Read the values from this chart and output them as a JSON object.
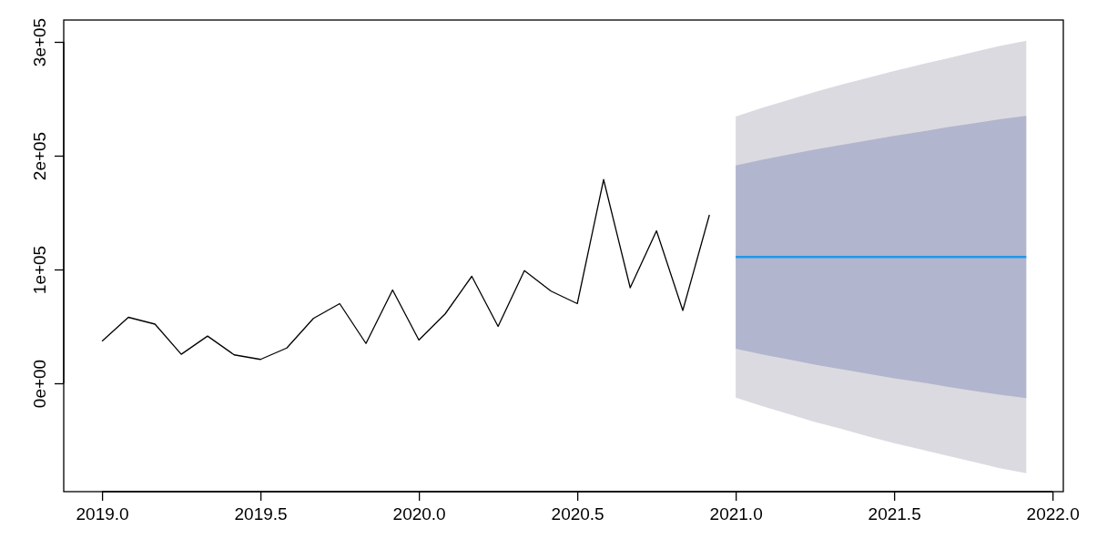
{
  "chart_data": {
    "type": "line",
    "xlim": [
      2018.879,
      2022.034
    ],
    "ylim": [
      -95200,
      319200
    ],
    "xticks": [
      {
        "value": 2019,
        "label": "2019.0"
      },
      {
        "value": 2019.5,
        "label": "2019.5"
      },
      {
        "value": 2020,
        "label": "2020.0"
      },
      {
        "value": 2020.5,
        "label": "2020.5"
      },
      {
        "value": 2021,
        "label": "2021.0"
      },
      {
        "value": 2021.5,
        "label": "2021.5"
      },
      {
        "value": 2022,
        "label": "2022.0"
      }
    ],
    "yticks": [
      {
        "value": 0,
        "label": "0e+00"
      },
      {
        "value": 100000,
        "label": "1e+05"
      },
      {
        "value": 200000,
        "label": "2e+05"
      },
      {
        "value": 300000,
        "label": "3e+05"
      }
    ],
    "series": [
      {
        "type": "area",
        "color": "#dbdae0",
        "x": [
          2021,
          2021.083,
          2021.167,
          2021.25,
          2021.333,
          2021.417,
          2021.5,
          2021.583,
          2021.667,
          2021.75,
          2021.833,
          2021.917
        ],
        "values": [
          null,
          null,
          null,
          null,
          null,
          null,
          null,
          null,
          null,
          null,
          null,
          null
        ],
        "lower": [
          -12500,
          -20000,
          -27000,
          -34000,
          -40000,
          -46500,
          -52500,
          -58000,
          -63500,
          -69000,
          -74500,
          -79000
        ],
        "upper": [
          234500,
          242000,
          249000,
          256000,
          262500,
          268500,
          274500,
          280000,
          285500,
          291000,
          296500,
          301000
        ]
      },
      {
        "type": "area",
        "color": "#b1b5ce",
        "x": [
          2021,
          2021.083,
          2021.167,
          2021.25,
          2021.333,
          2021.417,
          2021.5,
          2021.583,
          2021.667,
          2021.75,
          2021.833,
          2021.917
        ],
        "values": [
          null,
          null,
          null,
          null,
          null,
          null,
          null,
          null,
          null,
          null,
          null,
          null
        ],
        "lower": [
          30500,
          25500,
          21000,
          16500,
          12500,
          8500,
          4500,
          1000,
          -3000,
          -6500,
          -10000,
          -13000
        ],
        "upper": [
          191500,
          196500,
          201000,
          205500,
          209500,
          213500,
          217500,
          221000,
          225000,
          228500,
          232000,
          235000
        ]
      },
      {
        "color": "#2297e6",
        "x": [
          2021,
          2021.083,
          2021.167,
          2021.25,
          2021.333,
          2021.417,
          2021.5,
          2021.583,
          2021.667,
          2021.75,
          2021.833,
          2021.917
        ],
        "values": [
          111000,
          111000,
          111000,
          111000,
          111000,
          111000,
          111000,
          111000,
          111000,
          111000,
          111000,
          111000
        ]
      },
      {
        "color": "#000000",
        "x": [
          2019,
          2019.083,
          2019.167,
          2019.25,
          2019.333,
          2019.417,
          2019.5,
          2019.583,
          2019.667,
          2019.75,
          2019.833,
          2019.917,
          2020,
          2020.083,
          2020.167,
          2020.25,
          2020.333,
          2020.417,
          2020.5,
          2020.583,
          2020.667,
          2020.75,
          2020.833,
          2020.917
        ],
        "values": [
          37000,
          58000,
          52000,
          25500,
          41500,
          25000,
          21000,
          31000,
          57000,
          70000,
          35000,
          82000,
          38000,
          61000,
          94000,
          50000,
          99000,
          81000,
          70000,
          179000,
          84000,
          134000,
          64000,
          148000
        ]
      }
    ]
  }
}
